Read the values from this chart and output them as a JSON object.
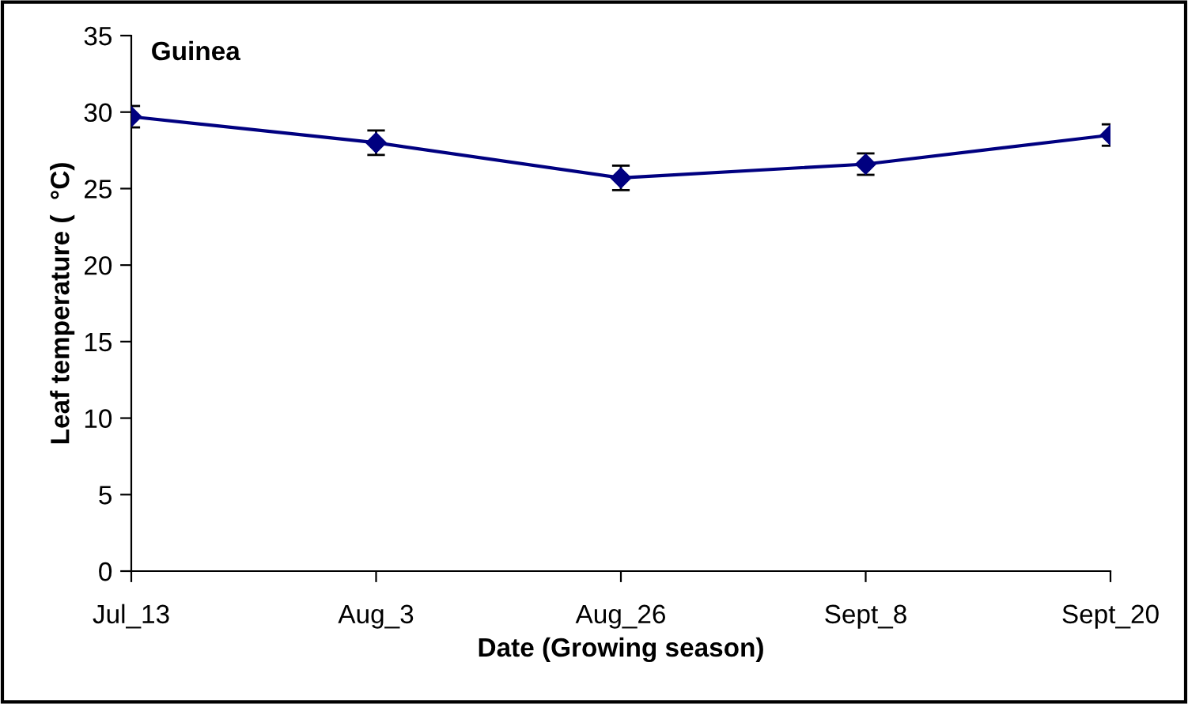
{
  "chart_data": {
    "type": "line",
    "title": "Guinea",
    "xlabel": "Date (Growing season)",
    "ylabel": "Leaf temperature (  °C)",
    "categories": [
      "Jul_13",
      "Aug_3",
      "Aug_26",
      "Sept_8",
      "Sept_20"
    ],
    "series": [
      {
        "color": "#000080",
        "values": [
          29.7,
          28.0,
          25.7,
          26.6,
          28.5
        ],
        "errors": [
          0.7,
          0.8,
          0.8,
          0.7,
          0.7
        ]
      }
    ],
    "ylim": [
      0,
      35
    ],
    "yticks": [
      0,
      5,
      10,
      15,
      20,
      25,
      30,
      35
    ],
    "grid": false,
    "legend": false,
    "marker": "diamond",
    "line_style": "solid"
  }
}
